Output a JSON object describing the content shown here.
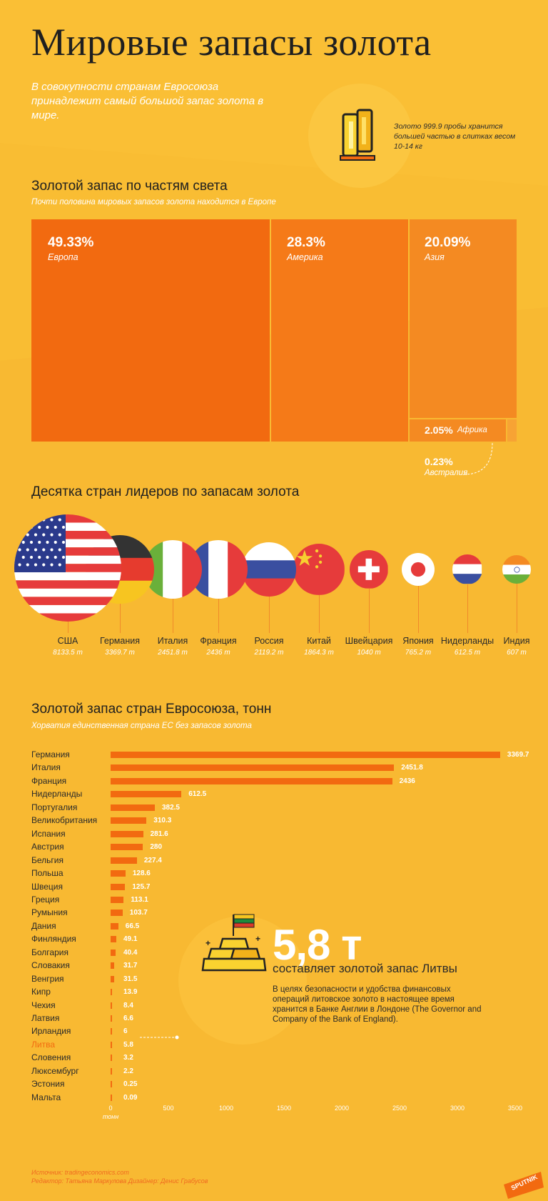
{
  "page_title": "Мировые запасы золота",
  "intro": "В совокупности странам Евросоюза принадлежит самый большой запас золота в мире.",
  "gold_note": "Золото 999.9 пробы хранится большей частью в слитках весом 10-14 кг",
  "colors": {
    "background": "#f9bd33",
    "accent": "#f26a10",
    "europe": "#f26a10",
    "america": "#f57a18",
    "asia": "#f48a22",
    "africa": "#f48a22",
    "text_white": "#ffffff"
  },
  "icons": {
    "gold_bars": "gold-bars-icon",
    "gold_pile": "gold-pile-icon",
    "lithuania_flag": "lithuania-flag-icon",
    "logo": "sputnik-logo"
  },
  "section1": {
    "title": "Золотой запас по частям света",
    "subtitle": "Почти половина мировых запасов золота находится в Европе"
  },
  "section2": {
    "title": "Десятка стран лидеров по запасам золота"
  },
  "section3": {
    "title": "Золотой запас стран Евросоюза, тонн",
    "subtitle": "Хорватия единственная страна ЕС без запасов золота",
    "axis_unit": "тонн"
  },
  "lithuania": {
    "big": "5,8 т",
    "sub": "составляет золотой запас Литвы",
    "desc": "В целях безопасности и удобства финансовых операций литовское золото в настоящее время хранится в Банке Англии в Лондоне (The Governor and Company of the Bank of England)."
  },
  "footer": {
    "source": "Источник: tradingeconomics.com",
    "credits": "Редактор: Татьяна Маркулова   Дизайнер: Денис Грабусов"
  },
  "logo_text": "SPUTNIK",
  "chart_data": [
    {
      "type": "treemap",
      "title": "Золотой запас по частям света",
      "items": [
        {
          "name": "Европа",
          "pct_label": "49.33%",
          "value": 49.33
        },
        {
          "name": "Америка",
          "pct_label": "28.3%",
          "value": 28.3
        },
        {
          "name": "Азия",
          "pct_label": "20.09%",
          "value": 20.09
        },
        {
          "name": "Африка",
          "pct_label": "2.05%",
          "value": 2.05
        },
        {
          "name": "Австралия",
          "pct_label": "0.23%",
          "value": 0.23
        }
      ]
    },
    {
      "type": "bubble",
      "title": "Десятка стран лидеров по запасам золота",
      "items": [
        {
          "name": "США",
          "label": "8133.5 т",
          "value": 8133.5,
          "flag": "usa"
        },
        {
          "name": "Германия",
          "label": "3369.7 т",
          "value": 3369.7,
          "flag": "germany"
        },
        {
          "name": "Италия",
          "label": "2451.8 т",
          "value": 2451.8,
          "flag": "italy"
        },
        {
          "name": "Франция",
          "label": "2436 т",
          "value": 2436,
          "flag": "france"
        },
        {
          "name": "Россия",
          "label": "2119.2 т",
          "value": 2119.2,
          "flag": "russia"
        },
        {
          "name": "Китай",
          "label": "1864.3 т",
          "value": 1864.3,
          "flag": "china"
        },
        {
          "name": "Швейцария",
          "label": "1040 т",
          "value": 1040,
          "flag": "switzerland"
        },
        {
          "name": "Япония",
          "label": "765.2 т",
          "value": 765.2,
          "flag": "japan"
        },
        {
          "name": "Нидерланды",
          "label": "612.5 т",
          "value": 612.5,
          "flag": "netherlands"
        },
        {
          "name": "Индия",
          "label": "607 т",
          "value": 607,
          "flag": "india"
        }
      ]
    },
    {
      "type": "bar",
      "orientation": "horizontal",
      "title": "Золотой запас стран Евросоюза, тонн",
      "xlim": [
        0,
        3500
      ],
      "xticks": [
        0,
        500,
        1000,
        1500,
        2000,
        2500,
        3000,
        3500
      ],
      "xlabel": "тонн",
      "highlight": "Литва",
      "categories": [
        "Германия",
        "Италия",
        "Франция",
        "Нидерланды",
        "Португалия",
        "Великобритания",
        "Испания",
        "Австрия",
        "Бельгия",
        "Польша",
        "Швеция",
        "Греция",
        "Румыния",
        "Дания",
        "Финляндия",
        "Болгария",
        "Словакия",
        "Венгрия",
        "Кипр",
        "Чехия",
        "Латвия",
        "Ирландия",
        "Литва",
        "Словения",
        "Люксембург",
        "Эстония",
        "Мальта"
      ],
      "values": [
        3369.7,
        2451.8,
        2436,
        612.5,
        382.5,
        310.3,
        281.6,
        280,
        227.4,
        128.6,
        125.7,
        113.1,
        103.7,
        66.5,
        49.1,
        40.4,
        31.7,
        31.5,
        13.9,
        8.4,
        6.6,
        6,
        5.8,
        3.2,
        2.2,
        0.25,
        0.09
      ],
      "labels": [
        "3369.7",
        "2451.8",
        "2436",
        "612.5",
        "382.5",
        "310.3",
        "281.6",
        "280",
        "227.4",
        "128.6",
        "125.7",
        "113.1",
        "103.7",
        "66.5",
        "49.1",
        "40.4",
        "31.7",
        "31.5",
        "13.9",
        "8.4",
        "6.6",
        "6",
        "5.8",
        "3.2",
        "2.2",
        "0.25",
        "0.09"
      ]
    }
  ]
}
